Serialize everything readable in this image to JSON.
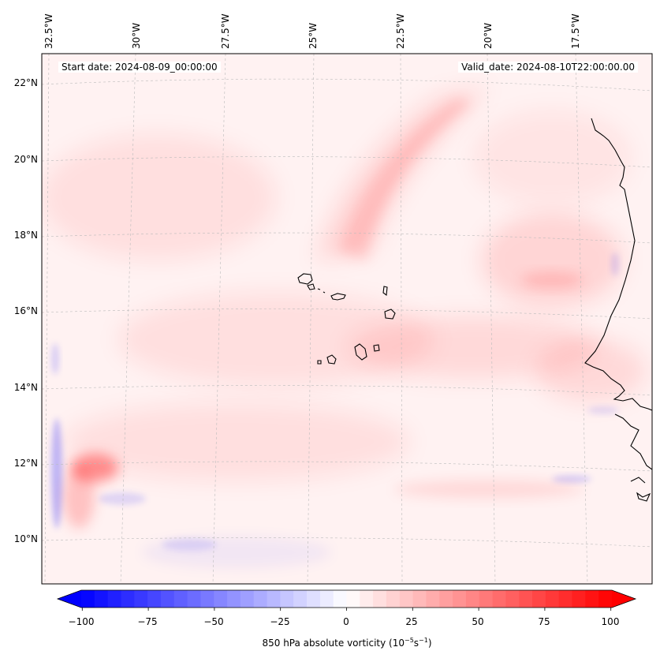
{
  "map": {
    "start_date_text": "Start date: 2024-08-09_00:00:00",
    "valid_date_text": "Valid_date: 2024-08-10T22:00:00.00",
    "longitude_labels": [
      "32.5°W",
      "30°W",
      "27.5°W",
      "25°W",
      "22.5°W",
      "20°W",
      "17.5°W"
    ],
    "latitude_labels": [
      "22°N",
      "20°N",
      "18°N",
      "16°N",
      "14°N",
      "12°N",
      "10°N"
    ],
    "field": "850 hPa absolute vorticity",
    "colors": {
      "positive": "#ff0000",
      "negative": "#0000ff",
      "neutral": "#ffffff",
      "coastline": "#000000",
      "gridline": "#bbbbbb"
    }
  },
  "colorbar": {
    "ticks": [
      "−100",
      "−75",
      "−50",
      "−25",
      "0",
      "25",
      "50",
      "75",
      "100"
    ],
    "min": -100,
    "max": 100,
    "title_prefix": "850 hPa absolute vorticity (10",
    "title_exp1": "−5",
    "title_mid": "s",
    "title_exp2": "−1",
    "title_suffix": ")"
  }
}
